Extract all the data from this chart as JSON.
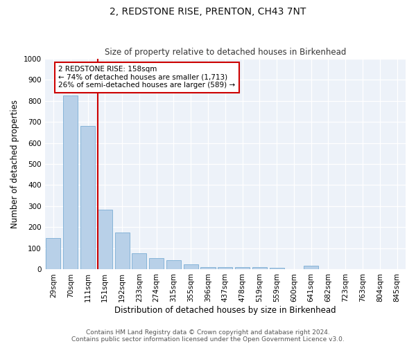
{
  "title": "2, REDSTONE RISE, PRENTON, CH43 7NT",
  "subtitle": "Size of property relative to detached houses in Birkenhead",
  "xlabel": "Distribution of detached houses by size in Birkenhead",
  "ylabel": "Number of detached properties",
  "footer_line1": "Contains HM Land Registry data © Crown copyright and database right 2024.",
  "footer_line2": "Contains public sector information licensed under the Open Government Licence v3.0.",
  "categories": [
    "29sqm",
    "70sqm",
    "111sqm",
    "151sqm",
    "192sqm",
    "233sqm",
    "274sqm",
    "315sqm",
    "355sqm",
    "396sqm",
    "437sqm",
    "478sqm",
    "519sqm",
    "559sqm",
    "600sqm",
    "641sqm",
    "682sqm",
    "723sqm",
    "763sqm",
    "804sqm",
    "845sqm"
  ],
  "values": [
    150,
    825,
    680,
    285,
    175,
    78,
    53,
    45,
    23,
    12,
    10,
    10,
    10,
    9,
    0,
    18,
    0,
    0,
    0,
    0,
    0
  ],
  "bar_color": "#b8d0e8",
  "bar_edge_color": "#7aadd4",
  "vline_color": "#cc0000",
  "annotation_text": "2 REDSTONE RISE: 158sqm\n← 74% of detached houses are smaller (1,713)\n26% of semi-detached houses are larger (589) →",
  "annotation_box_color": "#cc0000",
  "ylim": [
    0,
    1000
  ],
  "yticks": [
    0,
    100,
    200,
    300,
    400,
    500,
    600,
    700,
    800,
    900,
    1000
  ],
  "plot_bg_color": "#edf2f9",
  "title_fontsize": 10,
  "subtitle_fontsize": 8.5,
  "xlabel_fontsize": 8.5,
  "ylabel_fontsize": 8.5,
  "footer_fontsize": 6.5,
  "tick_fontsize": 7.5,
  "annot_fontsize": 7.5
}
